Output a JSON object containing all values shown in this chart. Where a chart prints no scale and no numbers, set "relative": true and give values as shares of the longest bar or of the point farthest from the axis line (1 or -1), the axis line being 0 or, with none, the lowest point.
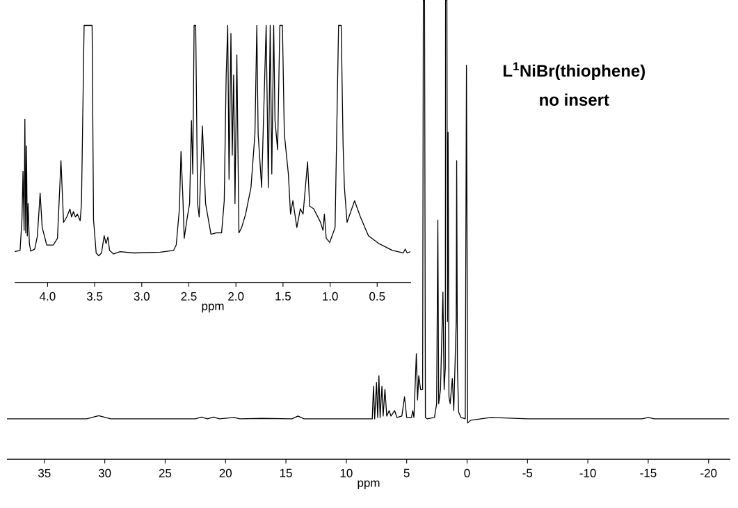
{
  "chart_data": [
    {
      "type": "line",
      "relative": true,
      "title": "L$^{1}$NiBr(thiophene)",
      "subtitle": "no insert",
      "xlabel": "ppm",
      "xlim": [
        38.1,
        -21.8
      ],
      "xticks": [
        35,
        30,
        25,
        20,
        15,
        10,
        5,
        0,
        -5,
        -10,
        -15,
        -20
      ],
      "grid": false,
      "series": [
        {
          "color": "#000000",
          "x": [
            38.1,
            31.5,
            30.5,
            29.5,
            22.5,
            22,
            21.5,
            21,
            20.5,
            19.3,
            18.8,
            17,
            14.5,
            14,
            13.5,
            8,
            7.85,
            7.75,
            7.65,
            7.5,
            7.4,
            7.3,
            7.2,
            7.05,
            6.95,
            6.8,
            6.65,
            6.45,
            6.3,
            6.0,
            5.8,
            5.4,
            5.18,
            5.0,
            4.6,
            4.5,
            4.4,
            4.2,
            4.1,
            4.0,
            3.85,
            3.68,
            3.62,
            3.52,
            3.45,
            3.3,
            2.7,
            2.52,
            2.42,
            2.35,
            2.2,
            2.0,
            1.9,
            1.8,
            1.78,
            1.67,
            1.62,
            1.57,
            1.5,
            1.4,
            1.22,
            1.1,
            0.9,
            0.86,
            0.8,
            0.7,
            0.5,
            0.15,
            0.05,
            -0.05,
            -0.3,
            -2,
            -5,
            -14.5,
            -15,
            -15.5,
            -21.7
          ],
          "values": [
            0.088,
            0.088,
            0.095,
            0.088,
            0.088,
            0.092,
            0.088,
            0.092,
            0.088,
            0.091,
            0.088,
            0.089,
            0.088,
            0.094,
            0.088,
            0.088,
            0.088,
            0.159,
            0.088,
            0.167,
            0.091,
            0.182,
            0.091,
            0.159,
            0.094,
            0.152,
            0.094,
            0.106,
            0.094,
            0.106,
            0.091,
            0.094,
            0.136,
            0.091,
            0.091,
            0.106,
            0.091,
            0.23,
            0.129,
            0.182,
            0.152,
            0.152,
            1,
            1,
            0.091,
            0.088,
            0.091,
            0.121,
            0.521,
            0.121,
            0.152,
            0.364,
            0.152,
            0.2,
            1,
            1,
            0.3,
            0.712,
            0.136,
            0.121,
            0.176,
            0.106,
            0.3,
            0.65,
            0.2,
            0.103,
            0.091,
            0.088,
            0.858,
            0.079,
            0.085,
            0.091,
            0.088,
            0.088,
            0.091,
            0.088,
            0.088
          ]
        }
      ]
    },
    {
      "type": "line",
      "relative": true,
      "xlabel": "ppm",
      "xlim": [
        4.35,
        0.14
      ],
      "xticks": [
        {
          "value": 4,
          "label": "4.0"
        },
        3.5,
        {
          "value": 3,
          "label": "3.0"
        },
        2.5,
        {
          "value": 2,
          "label": "2.0"
        },
        1.5,
        {
          "value": 1,
          "label": "1.0"
        },
        0.5
      ],
      "grid": false,
      "series": [
        {
          "color": "#000000",
          "x": [
            4.349,
            4.292,
            4.272,
            4.261,
            4.249,
            4.241,
            4.232,
            4.224,
            4.215,
            4.207,
            4.193,
            4.179,
            4.136,
            4.108,
            4.079,
            4.057,
            4.009,
            3.938,
            3.895,
            3.858,
            3.83,
            3.796,
            3.762,
            3.745,
            3.725,
            3.705,
            3.683,
            3.654,
            3.64,
            3.612,
            3.527,
            3.512,
            3.484,
            3.456,
            3.427,
            3.399,
            3.379,
            3.359,
            3.342,
            3.3,
            3.229,
            3.087,
            2.804,
            2.662,
            2.634,
            2.6,
            2.583,
            2.563,
            2.549,
            2.52,
            2.492,
            2.472,
            2.458,
            2.444,
            2.427,
            2.407,
            2.39,
            2.356,
            2.322,
            2.265,
            2.209,
            2.152,
            2.124,
            2.104,
            2.087,
            2.073,
            2.053,
            2.039,
            2.024,
            2.01,
            1.99,
            1.968,
            1.939,
            1.897,
            1.84,
            1.798,
            1.778,
            1.764,
            1.727,
            1.679,
            1.656,
            1.636,
            1.619,
            1.599,
            1.585,
            1.557,
            1.534,
            1.506,
            1.486,
            1.443,
            1.42,
            1.395,
            1.353,
            1.316,
            1.287,
            1.239,
            1.217,
            1.174,
            1.103,
            1.075,
            1.061,
            1.041,
            1.004,
            0.947,
            0.91,
            0.882,
            0.862,
            0.848,
            0.82,
            0.74,
            0.678,
            0.593,
            0.48,
            0.338,
            0.224,
            0.202,
            0.182,
            0.148
          ],
          "values": [
            0.12,
            0.125,
            0.245,
            0.432,
            0.203,
            0.635,
            0.193,
            0.531,
            0.181,
            0.307,
            0.151,
            0.122,
            0.13,
            0.181,
            0.348,
            0.214,
            0.146,
            0.146,
            0.172,
            0.474,
            0.234,
            0.255,
            0.286,
            0.255,
            0.276,
            0.255,
            0.266,
            0.24,
            0.307,
            1.0,
            1.0,
            0.245,
            0.115,
            0.104,
            0.115,
            0.182,
            0.151,
            0.177,
            0.125,
            0.111,
            0.12,
            0.115,
            0.118,
            0.125,
            0.146,
            0.286,
            0.51,
            0.328,
            0.172,
            0.245,
            0.307,
            0.63,
            0.422,
            1.0,
            1.0,
            0.307,
            0.255,
            0.609,
            0.307,
            0.188,
            0.193,
            0.193,
            0.318,
            0.797,
            1.0,
            0.401,
            0.969,
            0.495,
            0.807,
            0.307,
            0.885,
            0.193,
            0.214,
            0.266,
            0.37,
            0.578,
            1.0,
            0.578,
            0.37,
            1.0,
            0.37,
            1.0,
            0.422,
            1.0,
            0.63,
            0.516,
            1.0,
            1.0,
            0.578,
            0.422,
            0.266,
            0.318,
            0.214,
            0.287,
            0.266,
            0.469,
            0.297,
            0.287,
            0.235,
            0.203,
            0.266,
            0.172,
            0.156,
            0.214,
            1.0,
            1.0,
            0.536,
            0.37,
            0.234,
            0.318,
            0.255,
            0.182,
            0.151,
            0.125,
            0.115,
            0.13,
            0.115,
            0.12
          ]
        }
      ]
    }
  ]
}
